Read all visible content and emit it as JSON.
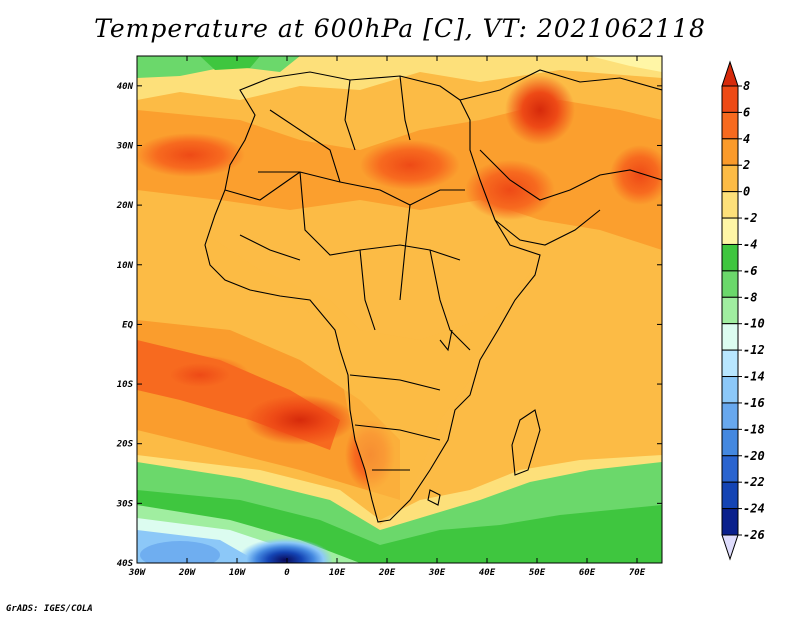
{
  "title": "Temperature at 600hPa [C], VT: 2021062118",
  "credit": "GrADS: IGES/COLA",
  "map": {
    "lon_ticks": [
      "30W",
      "20W",
      "10W",
      "0",
      "10E",
      "20E",
      "30E",
      "40E",
      "50E",
      "60E",
      "70E"
    ],
    "lat_ticks": [
      "40N",
      "30N",
      "20N",
      "10N",
      "EQ",
      "10S",
      "20S",
      "30S",
      "40S"
    ],
    "lon_range": [
      -30,
      75
    ],
    "lat_range": [
      -40,
      45
    ],
    "variable": "Temperature",
    "level": "600hPa",
    "units": "C",
    "valid_time": "2021062118"
  },
  "colorbar": {
    "levels": [
      "8",
      "6",
      "4",
      "2",
      "0",
      "-2",
      "-4",
      "-6",
      "-8",
      "-10",
      "-12",
      "-14",
      "-16",
      "-18",
      "-20",
      "-22",
      "-24",
      "-26"
    ],
    "colors": [
      "#d62a0b",
      "#ee4a16",
      "#f76a1f",
      "#fa9a2a",
      "#fcbb45",
      "#fde07a",
      "#fff6a6",
      "#3fc63f",
      "#6bd86b",
      "#a0eea0",
      "#dcfcf0",
      "#b8e6ff",
      "#8cc8f8",
      "#68a8ee",
      "#4488e0",
      "#2a64d0",
      "#1444b4",
      "#0a208c",
      "#0a0a5a"
    ]
  }
}
